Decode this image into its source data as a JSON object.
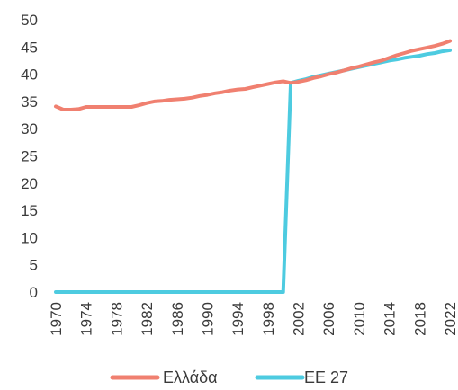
{
  "chart_data": {
    "type": "line",
    "title": "",
    "xlabel": "",
    "ylabel": "",
    "ylim": [
      0,
      50
    ],
    "xlim": [
      1970,
      2022
    ],
    "yticks": [
      0,
      5,
      10,
      15,
      20,
      25,
      30,
      35,
      40,
      45,
      50
    ],
    "xticks": [
      1970,
      1974,
      1978,
      1982,
      1986,
      1990,
      1994,
      1998,
      2002,
      2006,
      2010,
      2014,
      2018,
      2022
    ],
    "grid": false,
    "legend_position": "bottom",
    "x": [
      1970,
      1971,
      1972,
      1973,
      1974,
      1975,
      1976,
      1977,
      1978,
      1979,
      1980,
      1981,
      1982,
      1983,
      1984,
      1985,
      1986,
      1987,
      1988,
      1989,
      1990,
      1991,
      1992,
      1993,
      1994,
      1995,
      1996,
      1997,
      1998,
      1999,
      2000,
      2001,
      2002,
      2003,
      2004,
      2005,
      2006,
      2007,
      2008,
      2009,
      2010,
      2011,
      2012,
      2013,
      2014,
      2015,
      2016,
      2017,
      2018,
      2019,
      2020,
      2021,
      2022
    ],
    "series": [
      {
        "name": "Ελλάδα",
        "color": "#f08070",
        "values": [
          34.1,
          33.5,
          33.5,
          33.6,
          34.0,
          34.0,
          34.0,
          34.0,
          34.0,
          34.0,
          34.0,
          34.3,
          34.7,
          35.0,
          35.1,
          35.3,
          35.4,
          35.5,
          35.7,
          36.0,
          36.2,
          36.5,
          36.7,
          37.0,
          37.2,
          37.3,
          37.6,
          37.9,
          38.2,
          38.5,
          38.7,
          38.4,
          38.6,
          38.9,
          39.3,
          39.6,
          40.0,
          40.3,
          40.7,
          41.1,
          41.4,
          41.8,
          42.2,
          42.5,
          43.0,
          43.5,
          43.9,
          44.3,
          44.6,
          44.9,
          45.2,
          45.6,
          46.1
        ]
      },
      {
        "name": "ΕΕ 27",
        "color": "#4dcbe0",
        "values": [
          0,
          0,
          0,
          0,
          0,
          0,
          0,
          0,
          0,
          0,
          0,
          0,
          0,
          0,
          0,
          0,
          0,
          0,
          0,
          0,
          0,
          0,
          0,
          0,
          0,
          0,
          0,
          0,
          0,
          0,
          0,
          38.4,
          38.8,
          39.1,
          39.5,
          39.8,
          40.1,
          40.4,
          40.7,
          41.0,
          41.3,
          41.6,
          41.9,
          42.2,
          42.5,
          42.7,
          43.0,
          43.2,
          43.4,
          43.7,
          43.9,
          44.2,
          44.4
        ]
      }
    ]
  }
}
